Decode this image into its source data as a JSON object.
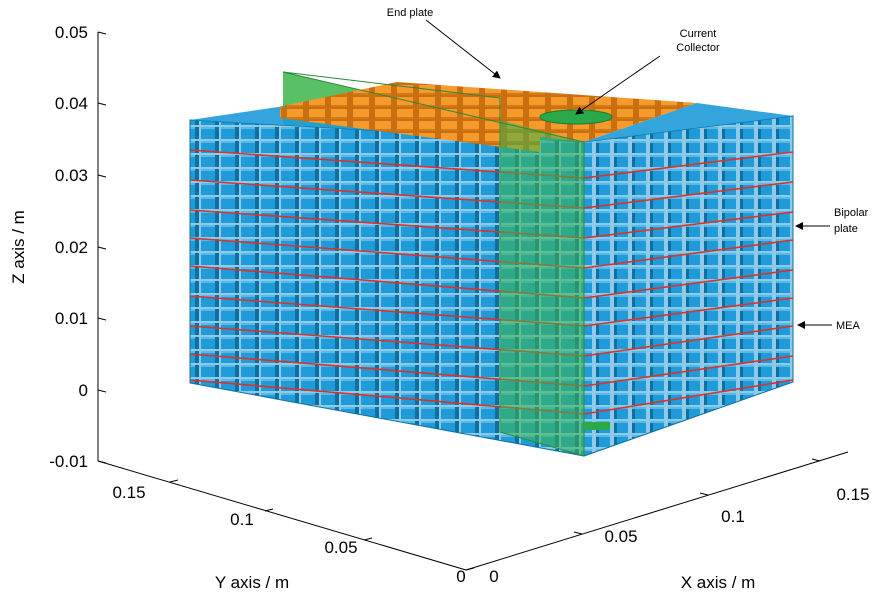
{
  "axes": {
    "z": {
      "label": "Z axis / m",
      "ticks": [
        "0.05",
        "0.04",
        "0.03",
        "0.02",
        "0.01",
        "0",
        "-0.01"
      ]
    },
    "y": {
      "label": "Y axis / m",
      "ticks": [
        "0.15",
        "0.1",
        "0.05",
        "0"
      ]
    },
    "x": {
      "label": "X axis / m",
      "ticks": [
        "0",
        "0.05",
        "0.1",
        "0.15"
      ]
    }
  },
  "annotations": {
    "end_plate": "End plate",
    "current_collector_line1": "Current",
    "current_collector_line2": "Collector",
    "bipolar_plate_line1": "Bipolar",
    "bipolar_plate_line2": "plate",
    "mea": "MEA"
  },
  "colors": {
    "cell_blue": "#1e9bd8",
    "cell_blue_dark": "#0f6f9e",
    "end_plate_orange": "#f59a2b",
    "collector_green": "#2aa84a",
    "green_plane": "#3cb54a",
    "mea_red": "#d9342b"
  }
}
